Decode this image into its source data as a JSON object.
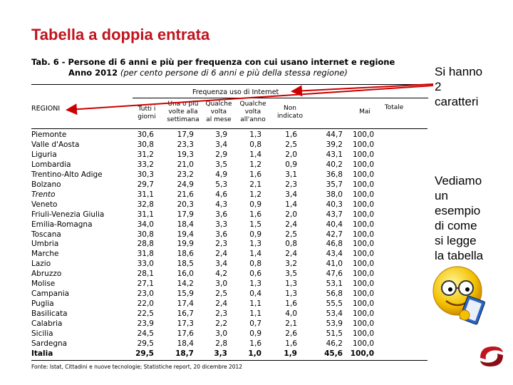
{
  "title": "Tabella a doppia entrata",
  "subtitle": {
    "line1": "Tab. 6 - Persone di 6 anni e più per frequenza con cui usano internet e regione",
    "line2_bold": "Anno 2012",
    "line2_rest": " (per cento persone di 6 anni e più della stessa regione)"
  },
  "side_note_top": [
    "Si hanno",
    "2",
    "caratteri"
  ],
  "side_note_bottom": [
    "Vediamo",
    "un",
    "esempio",
    "di come",
    "si legge",
    "la tabella"
  ],
  "group_header": "Frequenza uso di Internet",
  "row_header": "REGIONI",
  "columns": [
    [
      "Tutti i",
      "giorni"
    ],
    [
      "Una o più",
      "volte alla",
      "settimana"
    ],
    [
      "Qualche",
      "volta",
      "al mese"
    ],
    [
      "Qualche",
      "volta",
      "all'anno"
    ],
    [
      "Non",
      "indicato"
    ],
    [
      "Mai"
    ],
    [
      "Totale"
    ]
  ],
  "rows": [
    {
      "name": "Piemonte",
      "values": [
        "30,6",
        "17,9",
        "3,9",
        "1,3",
        "1,6",
        "44,7",
        "100,0"
      ]
    },
    {
      "name": "Valle d'Aosta",
      "values": [
        "30,8",
        "23,3",
        "3,4",
        "0,8",
        "2,5",
        "39,2",
        "100,0"
      ]
    },
    {
      "name": "Liguria",
      "values": [
        "31,2",
        "19,3",
        "2,9",
        "1,4",
        "2,0",
        "43,1",
        "100,0"
      ]
    },
    {
      "name": "Lombardia",
      "values": [
        "33,2",
        "21,0",
        "3,5",
        "1,2",
        "0,9",
        "40,2",
        "100,0"
      ]
    },
    {
      "name": "Trentino-Alto Adige",
      "values": [
        "30,3",
        "23,2",
        "4,9",
        "1,6",
        "3,1",
        "36,8",
        "100,0"
      ]
    },
    {
      "name": "Bolzano",
      "values": [
        "29,7",
        "24,9",
        "5,3",
        "2,1",
        "2,3",
        "35,7",
        "100,0"
      ]
    },
    {
      "name": "Trento",
      "italic": true,
      "values": [
        "31,1",
        "21,6",
        "4,6",
        "1,2",
        "3,4",
        "38,0",
        "100,0"
      ]
    },
    {
      "name": "Veneto",
      "values": [
        "32,8",
        "20,3",
        "4,3",
        "0,9",
        "1,4",
        "40,3",
        "100,0"
      ]
    },
    {
      "name": "Friuli-Venezia Giulia",
      "values": [
        "31,1",
        "17,9",
        "3,6",
        "1,6",
        "2,0",
        "43,7",
        "100,0"
      ]
    },
    {
      "name": "Emilia-Romagna",
      "values": [
        "34,0",
        "18,4",
        "3,3",
        "1,5",
        "2,4",
        "40,4",
        "100,0"
      ]
    },
    {
      "name": "Toscana",
      "values": [
        "30,8",
        "19,4",
        "3,6",
        "0,9",
        "2,5",
        "42,7",
        "100,0"
      ]
    },
    {
      "name": "Umbria",
      "values": [
        "28,8",
        "19,9",
        "2,3",
        "1,3",
        "0,8",
        "46,8",
        "100,0"
      ]
    },
    {
      "name": "Marche",
      "values": [
        "31,8",
        "18,6",
        "2,4",
        "1,4",
        "2,4",
        "43,4",
        "100,0"
      ]
    },
    {
      "name": "Lazio",
      "values": [
        "33,0",
        "18,5",
        "3,4",
        "0,8",
        "3,2",
        "41,0",
        "100,0"
      ]
    },
    {
      "name": "Abruzzo",
      "values": [
        "28,1",
        "16,0",
        "4,2",
        "0,6",
        "3,5",
        "47,6",
        "100,0"
      ]
    },
    {
      "name": "Molise",
      "values": [
        "27,1",
        "14,2",
        "3,0",
        "1,3",
        "1,3",
        "53,1",
        "100,0"
      ]
    },
    {
      "name": "Campania",
      "values": [
        "23,0",
        "15,9",
        "2,5",
        "0,4",
        "1,3",
        "56,8",
        "100,0"
      ]
    },
    {
      "name": "Puglia",
      "values": [
        "22,0",
        "17,4",
        "2,4",
        "1,1",
        "1,6",
        "55,5",
        "100,0"
      ]
    },
    {
      "name": "Basilicata",
      "values": [
        "22,5",
        "16,7",
        "2,3",
        "1,1",
        "4,0",
        "53,4",
        "100,0"
      ]
    },
    {
      "name": "Calabria",
      "values": [
        "23,9",
        "17,3",
        "2,2",
        "0,7",
        "2,1",
        "53,9",
        "100,0"
      ]
    },
    {
      "name": "Sicilia",
      "values": [
        "24,5",
        "17,6",
        "3,0",
        "0,9",
        "2,6",
        "51,5",
        "100,0"
      ]
    },
    {
      "name": "Sardegna",
      "values": [
        "29,5",
        "18,4",
        "2,8",
        "1,6",
        "1,6",
        "46,2",
        "100,0"
      ]
    },
    {
      "name": "Italia",
      "total": true,
      "values": [
        "29,5",
        "18,7",
        "3,3",
        "1,0",
        "1,9",
        "45,6",
        "100,0"
      ]
    }
  ],
  "source": "Fonte: Istat, Cittadini e nuove tecnologie; Statistiche report, 20 dicembre 2012",
  "colors": {
    "title": "#c0141e",
    "arrow": "#cc0000",
    "logo": "#c0141e"
  },
  "icons": {
    "mascot": "smiley-reading-icon",
    "logo": "swirl-logo-icon"
  }
}
